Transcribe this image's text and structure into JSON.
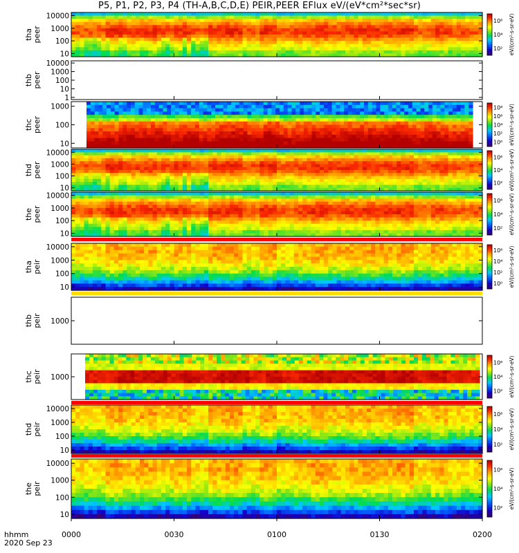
{
  "title": "P5, P1, P2, P3, P4 (TH-A,B,C,D,E) PEIR,PEER EFlux eV/(eV*cm²*sec*sr)",
  "footer": {
    "time_label": "hhmm",
    "date_label": "2020 Sep 23"
  },
  "chart_data": {
    "type": "heatmap",
    "x_ticks": [
      "0000",
      "0030",
      "0100",
      "0130",
      "0200"
    ],
    "x_range_minutes": [
      0,
      120
    ],
    "colorbar_units": "eV/(cm²-s-sr-eV)",
    "panels": [
      {
        "probe": "tha",
        "instrument": "peer",
        "y_ticks": [
          "10",
          "100",
          "1000",
          "10000"
        ],
        "colorbar_ticks": [
          "10²",
          "10⁴",
          "10⁶"
        ],
        "has_data": true,
        "kind": "electron"
      },
      {
        "probe": "thb",
        "instrument": "peer",
        "y_ticks": [
          "1",
          "10",
          "100",
          "1000",
          "10000"
        ],
        "colorbar_ticks": [],
        "has_data": false,
        "kind": "none"
      },
      {
        "probe": "thc",
        "instrument": "peer",
        "y_ticks": [
          "10",
          "100",
          "1000"
        ],
        "colorbar_ticks": [
          "10⁰",
          "10²",
          "10⁴",
          "10⁶",
          "10⁸"
        ],
        "has_data": true,
        "kind": "electron_c"
      },
      {
        "probe": "thd",
        "instrument": "peer",
        "y_ticks": [
          "10",
          "100",
          "1000",
          "10000"
        ],
        "colorbar_ticks": [
          "10²",
          "10⁴",
          "10⁶"
        ],
        "has_data": true,
        "kind": "electron"
      },
      {
        "probe": "the",
        "instrument": "peer",
        "y_ticks": [
          "10",
          "100",
          "1000",
          "10000"
        ],
        "colorbar_ticks": [
          "10²",
          "10⁴",
          "10⁶"
        ],
        "has_data": true,
        "kind": "electron"
      },
      {
        "probe": "tha",
        "instrument": "peir",
        "y_ticks": [
          "10",
          "100",
          "1000",
          "10000"
        ],
        "colorbar_ticks": [
          "10⁰",
          "10²",
          "10⁴",
          "10⁶"
        ],
        "has_data": true,
        "kind": "ion"
      },
      {
        "probe": "thb",
        "instrument": "peir",
        "y_ticks": [
          "1000"
        ],
        "colorbar_ticks": [],
        "has_data": false,
        "kind": "none"
      },
      {
        "probe": "thc",
        "instrument": "peir",
        "y_ticks": [
          "1000"
        ],
        "colorbar_ticks": [
          "10²",
          "10⁴",
          "10⁶"
        ],
        "has_data": true,
        "kind": "ion_c"
      },
      {
        "probe": "thd",
        "instrument": "peir",
        "y_ticks": [
          "10",
          "100",
          "1000",
          "10000"
        ],
        "colorbar_ticks": [
          "10²",
          "10⁴",
          "10⁶"
        ],
        "has_data": true,
        "kind": "ion"
      },
      {
        "probe": "the",
        "instrument": "peir",
        "y_ticks": [
          "10",
          "100",
          "1000",
          "10000"
        ],
        "colorbar_ticks": [
          "10²",
          "10⁴",
          "10⁶"
        ],
        "has_data": true,
        "kind": "ion"
      }
    ]
  }
}
